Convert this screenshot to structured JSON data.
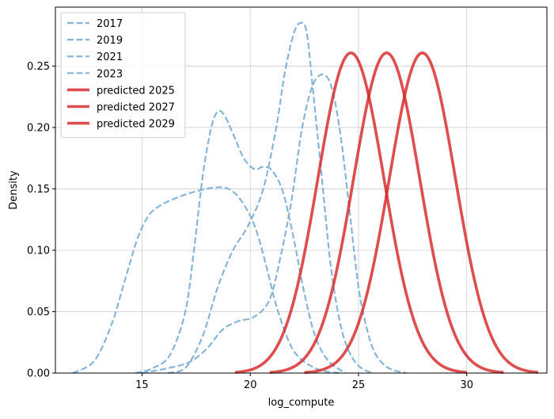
{
  "chart_data": {
    "type": "line",
    "xlabel": "log_compute",
    "ylabel": "Density",
    "xlim": [
      11,
      33.7
    ],
    "ylim": [
      0,
      0.298
    ],
    "x_ticks": [
      15,
      20,
      25,
      30
    ],
    "y_ticks": [
      0.0,
      0.05,
      0.1,
      0.15,
      0.2,
      0.25
    ],
    "grid": true,
    "legend_position": "top-left",
    "series": [
      {
        "name": "2017",
        "style": "dashed",
        "color": "#7fb1d3",
        "x": [
          11.8,
          12.8,
          13.6,
          14.2,
          14.8,
          15.3,
          15.8,
          16.5,
          17.3,
          18.3,
          19.0,
          19.6,
          20.2,
          20.7,
          21.2,
          21.8,
          22.3,
          23.0,
          23.6,
          24.2
        ],
        "y": [
          0.0,
          0.01,
          0.04,
          0.075,
          0.11,
          0.128,
          0.136,
          0.142,
          0.147,
          0.151,
          0.15,
          0.14,
          0.12,
          0.09,
          0.055,
          0.025,
          0.012,
          0.004,
          0.001,
          0.0
        ]
      },
      {
        "name": "2019",
        "style": "dashed",
        "color": "#7fb1d3",
        "x": [
          14.7,
          15.5,
          16.3,
          17.0,
          17.4,
          17.8,
          18.2,
          18.5,
          18.8,
          19.2,
          19.7,
          20.2,
          20.6,
          21.0,
          21.5,
          22.0,
          22.5,
          23.0,
          23.6,
          24.4
        ],
        "y": [
          0.0,
          0.004,
          0.015,
          0.05,
          0.1,
          0.16,
          0.2,
          0.213,
          0.21,
          0.195,
          0.175,
          0.166,
          0.168,
          0.165,
          0.148,
          0.11,
          0.065,
          0.03,
          0.01,
          0.0
        ]
      },
      {
        "name": "2021",
        "style": "dashed",
        "color": "#7fb1d3",
        "x": [
          16.2,
          17.0,
          17.8,
          18.5,
          19.2,
          19.9,
          20.6,
          21.2,
          21.6,
          22.0,
          22.3,
          22.6,
          22.9,
          23.3,
          23.7,
          24.1,
          24.5,
          25.0,
          25.6
        ],
        "y": [
          0.0,
          0.004,
          0.03,
          0.07,
          0.1,
          0.12,
          0.15,
          0.2,
          0.245,
          0.276,
          0.285,
          0.278,
          0.23,
          0.16,
          0.09,
          0.045,
          0.02,
          0.006,
          0.0
        ]
      },
      {
        "name": "2023",
        "style": "dashed",
        "color": "#7fb1d3",
        "x": [
          15.0,
          16.2,
          17.2,
          18.0,
          18.7,
          19.4,
          20.2,
          20.9,
          21.4,
          21.9,
          22.4,
          22.9,
          23.4,
          23.8,
          24.2,
          24.6,
          25.0,
          25.4,
          25.8,
          26.4,
          27.2
        ],
        "y": [
          0.0,
          0.004,
          0.009,
          0.02,
          0.035,
          0.042,
          0.046,
          0.06,
          0.095,
          0.14,
          0.2,
          0.235,
          0.243,
          0.23,
          0.19,
          0.13,
          0.07,
          0.035,
          0.015,
          0.004,
          0.0
        ]
      },
      {
        "name": "predicted 2025",
        "style": "solid",
        "color": "#d62728",
        "mean": 24.65,
        "sd": 1.53,
        "x_range": [
          19.3,
          30.0
        ]
      },
      {
        "name": "predicted 2027",
        "style": "solid",
        "color": "#d62728",
        "mean": 26.3,
        "sd": 1.53,
        "x_range": [
          20.9,
          31.7
        ]
      },
      {
        "name": "predicted 2029",
        "style": "solid",
        "color": "#d62728",
        "mean": 27.95,
        "sd": 1.53,
        "x_range": [
          22.5,
          33.3
        ]
      }
    ]
  }
}
